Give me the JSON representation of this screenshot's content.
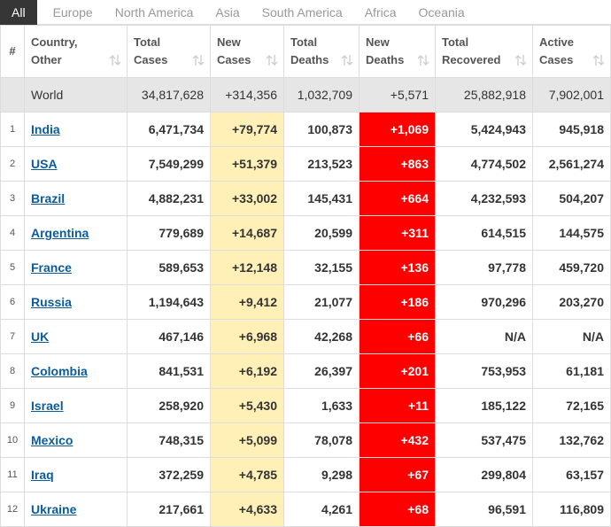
{
  "tabs": [
    "All",
    "Europe",
    "North America",
    "Asia",
    "South America",
    "Africa",
    "Oceania"
  ],
  "table": {
    "headers": [
      [
        "#"
      ],
      [
        "Country,",
        "Other"
      ],
      [
        "Total",
        "Cases"
      ],
      [
        "New",
        "Cases"
      ],
      [
        "Total",
        "Deaths"
      ],
      [
        "New",
        "Deaths"
      ],
      [
        "Total",
        "Recovered"
      ],
      [
        "Active",
        "Cases"
      ]
    ],
    "world": [
      "World",
      "34,817,628",
      "+314,356",
      "1,032,709",
      "+5,571",
      "25,882,918",
      "7,902,001"
    ],
    "rows": [
      [
        "1",
        "India",
        "6,471,734",
        "+79,774",
        "100,873",
        "+1,069",
        "5,424,943",
        "945,918"
      ],
      [
        "2",
        "USA",
        "7,549,299",
        "+51,379",
        "213,523",
        "+863",
        "4,774,502",
        "2,561,274"
      ],
      [
        "3",
        "Brazil",
        "4,882,231",
        "+33,002",
        "145,431",
        "+664",
        "4,232,593",
        "504,207"
      ],
      [
        "4",
        "Argentina",
        "779,689",
        "+14,687",
        "20,599",
        "+311",
        "614,515",
        "144,575"
      ],
      [
        "5",
        "France",
        "589,653",
        "+12,148",
        "32,155",
        "+136",
        "97,778",
        "459,720"
      ],
      [
        "6",
        "Russia",
        "1,194,643",
        "+9,412",
        "21,077",
        "+186",
        "970,296",
        "203,270"
      ],
      [
        "7",
        "UK",
        "467,146",
        "+6,968",
        "42,268",
        "+66",
        "N/A",
        "N/A"
      ],
      [
        "8",
        "Colombia",
        "841,531",
        "+6,192",
        "26,397",
        "+201",
        "753,953",
        "61,181"
      ],
      [
        "9",
        "Israel",
        "258,920",
        "+5,430",
        "1,633",
        "+11",
        "185,122",
        "72,165"
      ],
      [
        "10",
        "Mexico",
        "748,315",
        "+5,099",
        "78,078",
        "+432",
        "537,475",
        "132,762"
      ],
      [
        "11",
        "Iraq",
        "372,259",
        "+4,785",
        "9,298",
        "+67",
        "299,804",
        "63,157"
      ],
      [
        "12",
        "Ukraine",
        "217,661",
        "+4,633",
        "4,261",
        "+68",
        "96,591",
        "116,809"
      ]
    ]
  }
}
